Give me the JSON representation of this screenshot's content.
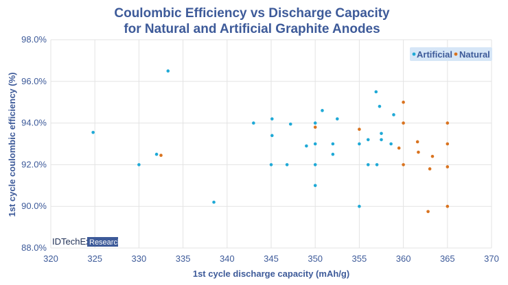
{
  "chart_data": {
    "type": "scatter",
    "title_lines": [
      "Coulombic Efficiency vs Discharge Capacity",
      "for Natural and Artificial Graphite Anodes"
    ],
    "xlabel": "1st cycle discharge capacity (mAh/g)",
    "ylabel": "1st cycle coulombic efficiency (%)",
    "xlim": [
      320,
      370
    ],
    "ylim": [
      88.0,
      98.0
    ],
    "x_ticks": [
      320,
      325,
      330,
      335,
      340,
      345,
      350,
      355,
      360,
      365,
      370
    ],
    "y_ticks": [
      88.0,
      90.0,
      92.0,
      94.0,
      96.0,
      98.0
    ],
    "y_tick_labels": [
      "88.0%",
      "90.0%",
      "92.0%",
      "94.0%",
      "96.0%",
      "98.0%"
    ],
    "grid": true,
    "legend_position": "top-right",
    "series": [
      {
        "name": "Artificial",
        "color": "#1fa9d6",
        "points": [
          [
            324.8,
            93.55
          ],
          [
            330.0,
            92.0
          ],
          [
            332.0,
            92.5
          ],
          [
            333.3,
            96.5
          ],
          [
            338.5,
            90.2
          ],
          [
            343.0,
            94.0
          ],
          [
            345.0,
            92.0
          ],
          [
            345.1,
            94.2
          ],
          [
            345.1,
            93.4
          ],
          [
            346.8,
            92.0
          ],
          [
            347.2,
            93.95
          ],
          [
            349.0,
            92.9
          ],
          [
            350.0,
            92.0
          ],
          [
            350.0,
            91.0
          ],
          [
            350.0,
            93.0
          ],
          [
            350.0,
            94.0
          ],
          [
            350.8,
            94.6
          ],
          [
            352.0,
            93.0
          ],
          [
            352.0,
            92.5
          ],
          [
            352.5,
            94.2
          ],
          [
            355.0,
            93.0
          ],
          [
            355.0,
            90.0
          ],
          [
            356.0,
            93.2
          ],
          [
            356.0,
            92.0
          ],
          [
            356.9,
            95.5
          ],
          [
            357.0,
            92.0
          ],
          [
            357.3,
            94.8
          ],
          [
            357.5,
            93.5
          ],
          [
            357.5,
            93.2
          ],
          [
            358.6,
            93.0
          ],
          [
            358.9,
            94.4
          ]
        ]
      },
      {
        "name": "Natural",
        "color": "#d9731f",
        "points": [
          [
            332.5,
            92.45
          ],
          [
            350.0,
            93.8
          ],
          [
            355.0,
            93.7
          ],
          [
            359.5,
            92.8
          ],
          [
            360.0,
            95.0
          ],
          [
            360.0,
            94.0
          ],
          [
            360.0,
            92.0
          ],
          [
            361.6,
            93.1
          ],
          [
            361.7,
            92.6
          ],
          [
            362.8,
            89.75
          ],
          [
            363.0,
            91.8
          ],
          [
            363.3,
            92.4
          ],
          [
            365.0,
            94.0
          ],
          [
            365.0,
            93.0
          ],
          [
            365.0,
            91.9
          ],
          [
            365.0,
            90.0
          ]
        ]
      }
    ]
  },
  "logo": {
    "brand": "IDTechEx",
    "sub": "Research"
  }
}
